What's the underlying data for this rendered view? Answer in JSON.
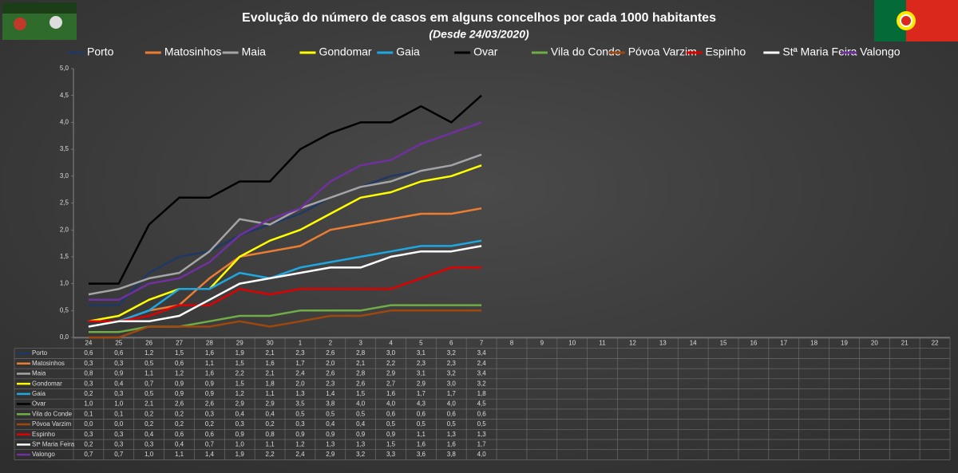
{
  "chart_data": {
    "type": "line",
    "title": "Evolução do número de casos em alguns concelhos por cada 1000 habitantes",
    "subtitle": "(Desde 24/03/2020)",
    "categories": [
      "24",
      "25",
      "26",
      "27",
      "28",
      "29",
      "30",
      "1",
      "2",
      "3",
      "4",
      "5",
      "6",
      "7",
      "8",
      "9",
      "10",
      "11",
      "12",
      "13",
      "14",
      "15",
      "16",
      "17",
      "18",
      "19",
      "20",
      "21",
      "22"
    ],
    "ylim": [
      0,
      5
    ],
    "yticks": [
      {
        "value": 0,
        "label": "0,0"
      },
      {
        "value": 0.5,
        "label": "0,5"
      },
      {
        "value": 1,
        "label": "1,0"
      },
      {
        "value": 1.5,
        "label": "1,5"
      },
      {
        "value": 2,
        "label": "2,0"
      },
      {
        "value": 2.5,
        "label": "2,5"
      },
      {
        "value": 3,
        "label": "3,0"
      },
      {
        "value": 3.5,
        "label": "3,5"
      },
      {
        "value": 4,
        "label": "4,0"
      },
      {
        "value": 4.5,
        "label": "4,5"
      },
      {
        "value": 5,
        "label": "5,0"
      }
    ],
    "grid": false,
    "legend": "top",
    "series": [
      {
        "name": "Porto",
        "color": "#1f3864",
        "values": [
          0.6,
          0.6,
          1.2,
          1.5,
          1.6,
          1.9,
          2.1,
          2.3,
          2.6,
          2.8,
          3.0,
          3.1,
          3.2,
          3.4,
          null,
          null,
          null,
          null,
          null,
          null,
          null,
          null,
          null,
          null,
          null,
          null,
          null,
          null,
          null
        ],
        "value_labels": [
          "0,6",
          "0,6",
          "1,2",
          "1,5",
          "1,6",
          "1,9",
          "2,1",
          "2,3",
          "2,6",
          "2,8",
          "3,0",
          "3,1",
          "3,2",
          "3,4",
          null,
          null,
          null,
          null,
          null,
          null,
          null,
          null,
          null,
          null,
          null,
          null,
          null,
          null,
          null
        ]
      },
      {
        "name": "Matosinhos",
        "color": "#ed7d31",
        "values": [
          0.3,
          0.3,
          0.5,
          0.6,
          1.1,
          1.5,
          1.6,
          1.7,
          2.0,
          2.1,
          2.2,
          2.3,
          2.3,
          2.4,
          null,
          null,
          null,
          null,
          null,
          null,
          null,
          null,
          null,
          null,
          null,
          null,
          null,
          null,
          null
        ],
        "value_labels": [
          "0,3",
          "0,3",
          "0,5",
          "0,6",
          "1,1",
          "1,5",
          "1,6",
          "1,7",
          "2,0",
          "2,1",
          "2,2",
          "2,3",
          "2,3",
          "2,4",
          null,
          null,
          null,
          null,
          null,
          null,
          null,
          null,
          null,
          null,
          null,
          null,
          null,
          null,
          null
        ]
      },
      {
        "name": "Maia",
        "color": "#a5a5a5",
        "values": [
          0.8,
          0.9,
          1.1,
          1.2,
          1.6,
          2.2,
          2.1,
          2.4,
          2.6,
          2.8,
          2.9,
          3.1,
          3.2,
          3.4,
          null,
          null,
          null,
          null,
          null,
          null,
          null,
          null,
          null,
          null,
          null,
          null,
          null,
          null,
          null
        ],
        "value_labels": [
          "0,8",
          "0,9",
          "1,1",
          "1,2",
          "1,6",
          "2,2",
          "2,1",
          "2,4",
          "2,6",
          "2,8",
          "2,9",
          "3,1",
          "3,2",
          "3,4",
          null,
          null,
          null,
          null,
          null,
          null,
          null,
          null,
          null,
          null,
          null,
          null,
          null,
          null,
          null
        ]
      },
      {
        "name": "Gondomar",
        "color": "#ffff00",
        "values": [
          0.3,
          0.4,
          0.7,
          0.9,
          0.9,
          1.5,
          1.8,
          2.0,
          2.3,
          2.6,
          2.7,
          2.9,
          3.0,
          3.2,
          null,
          null,
          null,
          null,
          null,
          null,
          null,
          null,
          null,
          null,
          null,
          null,
          null,
          null,
          null
        ],
        "value_labels": [
          "0,3",
          "0,4",
          "0,7",
          "0,9",
          "0,9",
          "1,5",
          "1,8",
          "2,0",
          "2,3",
          "2,6",
          "2,7",
          "2,9",
          "3,0",
          "3,2",
          null,
          null,
          null,
          null,
          null,
          null,
          null,
          null,
          null,
          null,
          null,
          null,
          null,
          null,
          null
        ]
      },
      {
        "name": "Gaia",
        "color": "#1ea7e1",
        "values": [
          0.2,
          0.3,
          0.5,
          0.9,
          0.9,
          1.2,
          1.1,
          1.3,
          1.4,
          1.5,
          1.6,
          1.7,
          1.7,
          1.8,
          null,
          null,
          null,
          null,
          null,
          null,
          null,
          null,
          null,
          null,
          null,
          null,
          null,
          null,
          null
        ],
        "value_labels": [
          "0,2",
          "0,3",
          "0,5",
          "0,9",
          "0,9",
          "1,2",
          "1,1",
          "1,3",
          "1,4",
          "1,5",
          "1,6",
          "1,7",
          "1,7",
          "1,8",
          null,
          null,
          null,
          null,
          null,
          null,
          null,
          null,
          null,
          null,
          null,
          null,
          null,
          null,
          null
        ]
      },
      {
        "name": "Ovar",
        "color": "#000000",
        "values": [
          1.0,
          1.0,
          2.1,
          2.6,
          2.6,
          2.9,
          2.9,
          3.5,
          3.8,
          4.0,
          4.0,
          4.3,
          4.0,
          4.5,
          null,
          null,
          null,
          null,
          null,
          null,
          null,
          null,
          null,
          null,
          null,
          null,
          null,
          null,
          null
        ],
        "value_labels": [
          "1,0",
          "1,0",
          "2,1",
          "2,6",
          "2,6",
          "2,9",
          "2,9",
          "3,5",
          "3,8",
          "4,0",
          "4,0",
          "4,3",
          "4,0",
          "4,5",
          null,
          null,
          null,
          null,
          null,
          null,
          null,
          null,
          null,
          null,
          null,
          null,
          null,
          null,
          null
        ]
      },
      {
        "name": "Vila do Conde",
        "color": "#70ad47",
        "values": [
          0.1,
          0.1,
          0.2,
          0.2,
          0.3,
          0.4,
          0.4,
          0.5,
          0.5,
          0.5,
          0.6,
          0.6,
          0.6,
          0.6,
          null,
          null,
          null,
          null,
          null,
          null,
          null,
          null,
          null,
          null,
          null,
          null,
          null,
          null,
          null
        ],
        "value_labels": [
          "0,1",
          "0,1",
          "0,2",
          "0,2",
          "0,3",
          "0,4",
          "0,4",
          "0,5",
          "0,5",
          "0,5",
          "0,6",
          "0,6",
          "0,6",
          "0,6",
          null,
          null,
          null,
          null,
          null,
          null,
          null,
          null,
          null,
          null,
          null,
          null,
          null,
          null,
          null
        ]
      },
      {
        "name": "Póvoa Varzim",
        "color": "#9e480e",
        "values": [
          0.0,
          0.0,
          0.2,
          0.2,
          0.2,
          0.3,
          0.2,
          0.3,
          0.4,
          0.4,
          0.5,
          0.5,
          0.5,
          0.5,
          null,
          null,
          null,
          null,
          null,
          null,
          null,
          null,
          null,
          null,
          null,
          null,
          null,
          null,
          null
        ],
        "value_labels": [
          "0,0",
          "0,0",
          "0,2",
          "0,2",
          "0,2",
          "0,3",
          "0,2",
          "0,3",
          "0,4",
          "0,4",
          "0,5",
          "0,5",
          "0,5",
          "0,5",
          null,
          null,
          null,
          null,
          null,
          null,
          null,
          null,
          null,
          null,
          null,
          null,
          null,
          null,
          null
        ]
      },
      {
        "name": "Espinho",
        "color": "#e00000",
        "values": [
          0.3,
          0.3,
          0.4,
          0.6,
          0.6,
          0.9,
          0.8,
          0.9,
          0.9,
          0.9,
          0.9,
          1.1,
          1.3,
          1.3,
          null,
          null,
          null,
          null,
          null,
          null,
          null,
          null,
          null,
          null,
          null,
          null,
          null,
          null,
          null
        ],
        "value_labels": [
          "0,3",
          "0,3",
          "0,4",
          "0,6",
          "0,6",
          "0,9",
          "0,8",
          "0,9",
          "0,9",
          "0,9",
          "0,9",
          "1,1",
          "1,3",
          "1,3",
          null,
          null,
          null,
          null,
          null,
          null,
          null,
          null,
          null,
          null,
          null,
          null,
          null,
          null,
          null
        ]
      },
      {
        "name": "Stª Maria Feira",
        "color": "#ffffff",
        "values": [
          0.2,
          0.3,
          0.3,
          0.4,
          0.7,
          1.0,
          1.1,
          1.2,
          1.3,
          1.3,
          1.5,
          1.6,
          1.6,
          1.7,
          null,
          null,
          null,
          null,
          null,
          null,
          null,
          null,
          null,
          null,
          null,
          null,
          null,
          null,
          null
        ],
        "value_labels": [
          "0,2",
          "0,3",
          "0,3",
          "0,4",
          "0,7",
          "1,0",
          "1,1",
          "1,2",
          "1,3",
          "1,3",
          "1,5",
          "1,6",
          "1,6",
          "1,7",
          null,
          null,
          null,
          null,
          null,
          null,
          null,
          null,
          null,
          null,
          null,
          null,
          null,
          null,
          null
        ]
      },
      {
        "name": "Valongo",
        "color": "#7030a0",
        "values": [
          0.7,
          0.7,
          1.0,
          1.1,
          1.4,
          1.9,
          2.2,
          2.4,
          2.9,
          3.2,
          3.3,
          3.6,
          3.8,
          4.0,
          null,
          null,
          null,
          null,
          null,
          null,
          null,
          null,
          null,
          null,
          null,
          null,
          null,
          null,
          null
        ],
        "value_labels": [
          "0,7",
          "0,7",
          "1,0",
          "1,1",
          "1,4",
          "1,9",
          "2,2",
          "2,4",
          "2,9",
          "3,2",
          "3,3",
          "3,6",
          "3,8",
          "4,0",
          null,
          null,
          null,
          null,
          null,
          null,
          null,
          null,
          null,
          null,
          null,
          null,
          null,
          null,
          null
        ]
      }
    ]
  }
}
